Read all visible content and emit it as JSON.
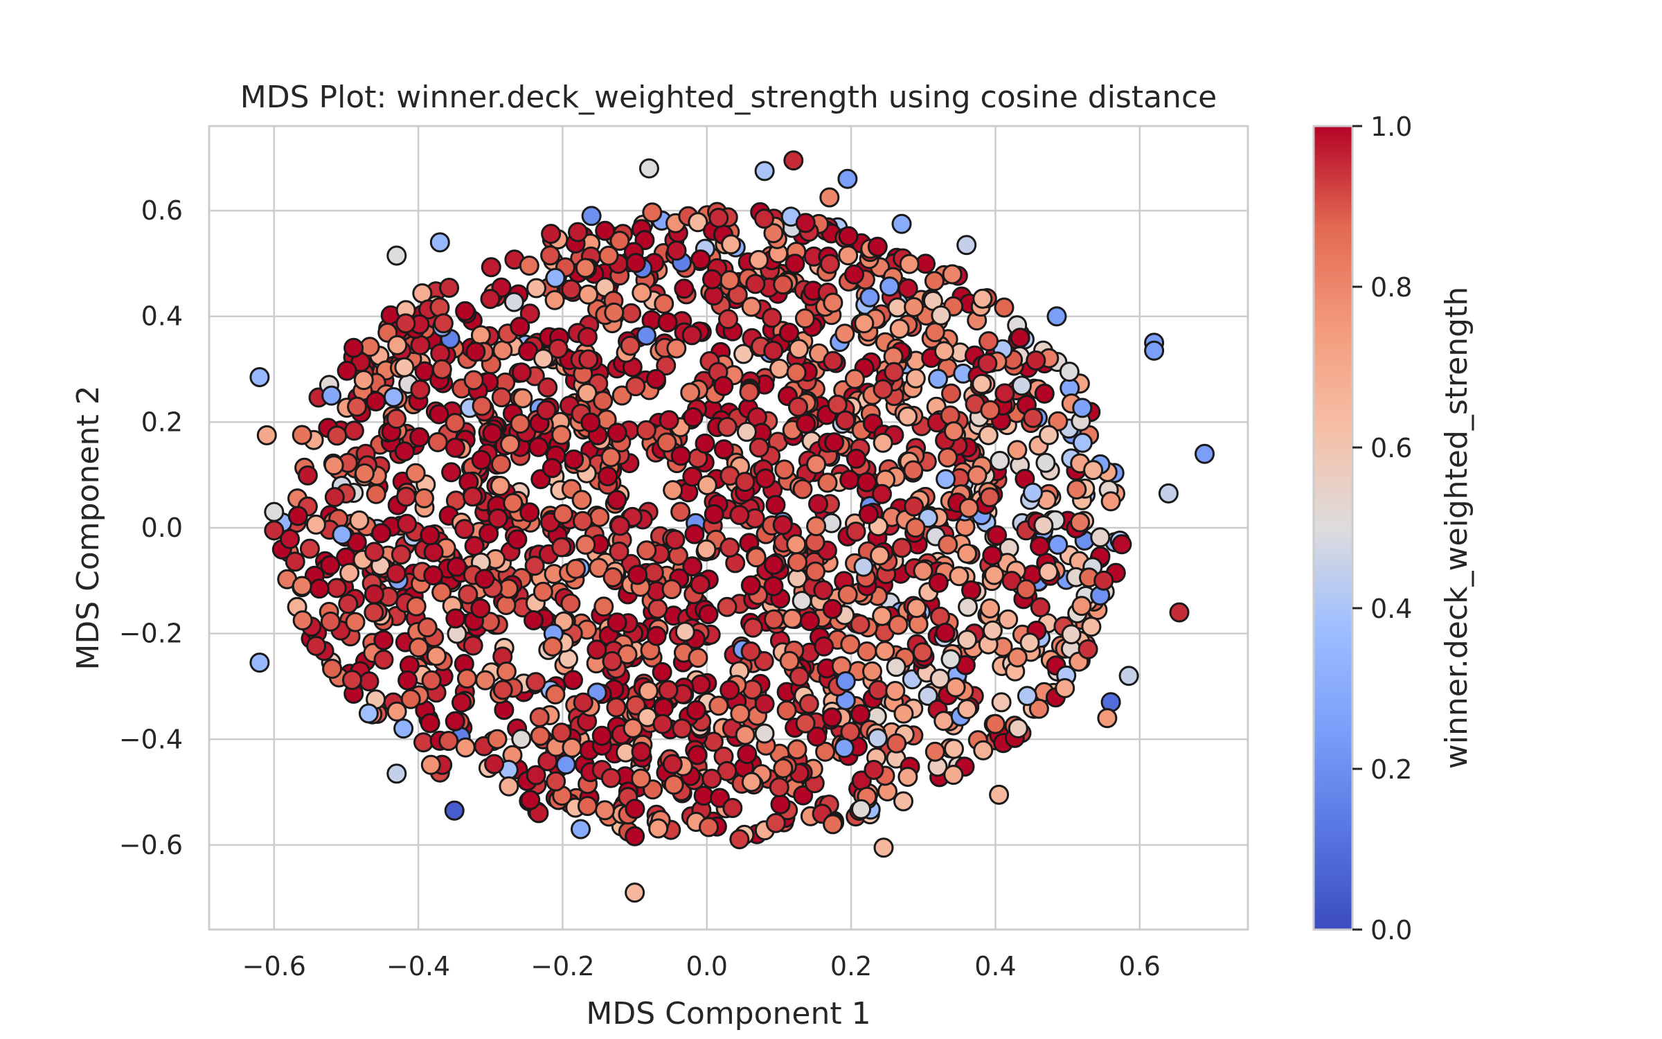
{
  "chart_data": {
    "type": "scatter",
    "title": "MDS Plot: winner.deck_weighted_strength using cosine distance",
    "xlabel": "MDS Component 1",
    "ylabel": "MDS Component 2",
    "xlim": [
      -0.69,
      0.75
    ],
    "ylim": [
      -0.76,
      0.76
    ],
    "xticks": [
      -0.6,
      -0.4,
      -0.2,
      0.0,
      0.2,
      0.4,
      0.6
    ],
    "yticks": [
      -0.6,
      -0.4,
      -0.2,
      0.0,
      0.2,
      0.4,
      0.6
    ],
    "xtick_labels": [
      "−0.6",
      "−0.4",
      "−0.2",
      "0.0",
      "0.2",
      "0.4",
      "0.6"
    ],
    "ytick_labels": [
      "−0.6",
      "−0.4",
      "−0.2",
      "0.0",
      "0.2",
      "0.4",
      "0.6"
    ],
    "grid": true,
    "colormap": "coolwarm",
    "colorbar": {
      "label": "winner.deck_weighted_strength",
      "range": [
        0.0,
        1.0
      ],
      "ticks": [
        0.0,
        0.2,
        0.4,
        0.6,
        0.8,
        1.0
      ],
      "tick_labels": [
        "0.0",
        "0.2",
        "0.4",
        "0.6",
        "0.8",
        "1.0"
      ]
    },
    "marker_edge_color": "#1a1a1a",
    "point_count_estimate": 2000,
    "points": [
      [
        -0.62,
        0.285,
        0.35
      ],
      [
        -0.62,
        -0.255,
        0.35
      ],
      [
        -0.35,
        -0.535,
        0.05
      ],
      [
        -0.43,
        -0.465,
        0.45
      ],
      [
        0.69,
        0.14,
        0.25
      ],
      [
        0.655,
        -0.16,
        0.95
      ],
      [
        0.64,
        0.065,
        0.45
      ],
      [
        0.62,
        0.35,
        0.25
      ],
      [
        0.62,
        0.335,
        0.25
      ],
      [
        0.56,
        -0.33,
        0.1
      ],
      [
        0.555,
        -0.36,
        0.75
      ],
      [
        0.585,
        -0.28,
        0.45
      ],
      [
        0.12,
        0.695,
        0.95
      ],
      [
        0.08,
        0.675,
        0.4
      ],
      [
        0.195,
        0.66,
        0.25
      ],
      [
        -0.08,
        0.68,
        0.5
      ],
      [
        0.17,
        0.625,
        0.8
      ],
      [
        -0.1,
        -0.69,
        0.65
      ],
      [
        -0.43,
        0.515,
        0.5
      ],
      [
        -0.37,
        0.54,
        0.35
      ],
      [
        -0.61,
        0.175,
        0.7
      ],
      [
        -0.6,
        -0.005,
        0.95
      ],
      [
        0.485,
        0.4,
        0.25
      ],
      [
        0.56,
        0.05,
        0.75
      ],
      [
        -0.175,
        -0.57,
        0.3
      ],
      [
        0.245,
        -0.605,
        0.65
      ],
      [
        0.55,
        -0.1,
        0.95
      ],
      [
        -0.16,
        0.59,
        0.2
      ],
      [
        0.405,
        -0.505,
        0.65
      ],
      [
        0.27,
        0.575,
        0.3
      ],
      [
        0.36,
        0.535,
        0.45
      ],
      [
        -0.6,
        0.03,
        0.5
      ]
    ]
  }
}
